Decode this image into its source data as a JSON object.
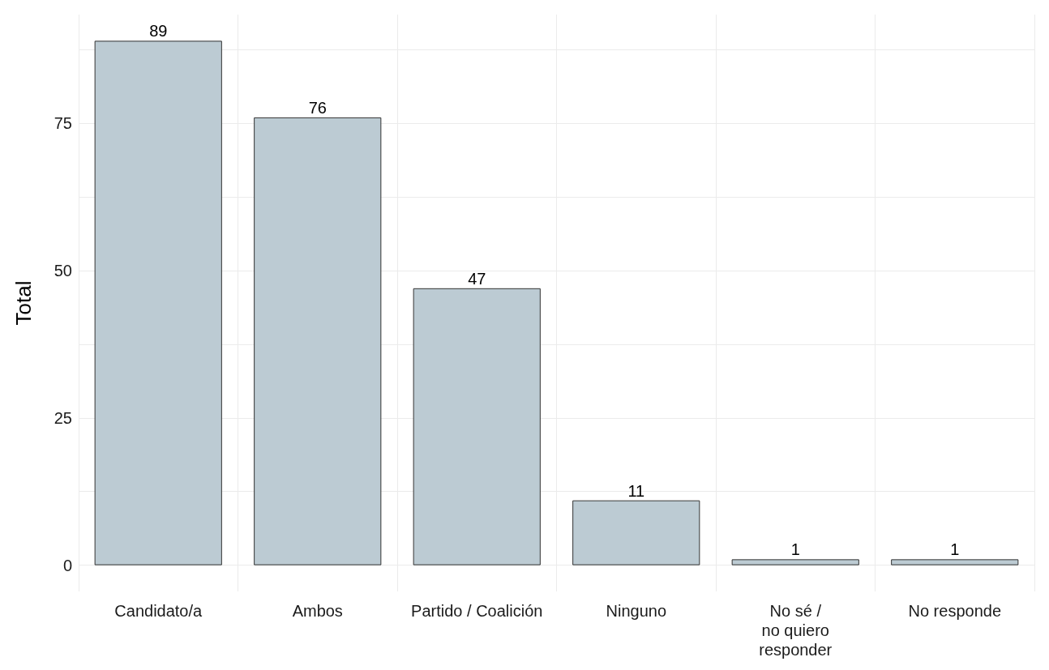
{
  "chart_data": {
    "type": "bar",
    "ylabel": "Total",
    "categories": [
      "Candidato/a",
      "Ambos",
      "Partido / Coalición",
      "Ninguno",
      "No sé /\nno quiero\nresponder",
      "No responde"
    ],
    "values": [
      89,
      76,
      47,
      11,
      1,
      1
    ],
    "color": "#bccbd3",
    "ylim": [
      -4.45,
      93.45
    ],
    "yticks": [
      0,
      {
        "value": 12.5,
        "label": null
      },
      25,
      {
        "value": 37.5,
        "label": null
      },
      50,
      {
        "value": 62.5,
        "label": null
      },
      75,
      {
        "value": 87.5,
        "label": null
      }
    ],
    "grid": true,
    "data_labels": true
  }
}
